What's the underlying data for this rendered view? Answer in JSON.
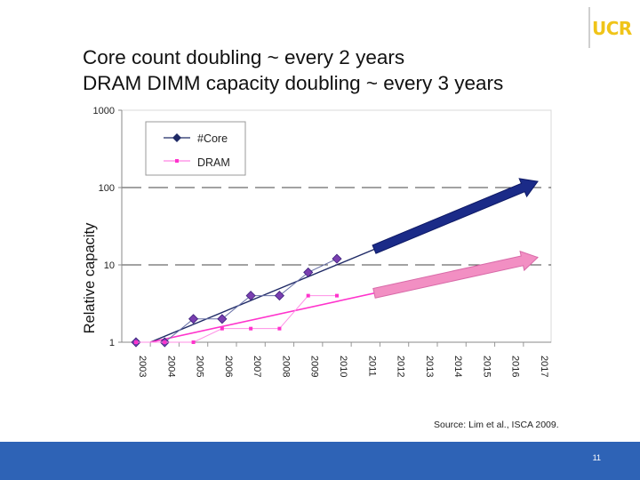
{
  "slide": {
    "title_line1": "Core count doubling ~ every 2 years",
    "title_line2": "DRAM DIMM capacity doubling ~ every 3 years",
    "logo": "UCR",
    "source": "Source: Lim et al., ISCA 2009.",
    "page_number": "11"
  },
  "colors": {
    "footer": "#2e63b6",
    "core": "#1f2a66",
    "dram": "#ff33cc",
    "core_arrow": "#1b2b88",
    "dram_arrow": "#f28fc3",
    "logo": "#f0c419"
  },
  "chart_data": {
    "type": "line",
    "scale": "log",
    "ylabel": "Relative capacity",
    "ylim": [
      1,
      1000
    ],
    "yticks": [
      "1",
      "10",
      "100",
      "1000"
    ],
    "categories": [
      "2003",
      "2004",
      "2005",
      "2006",
      "2007",
      "2008",
      "2009",
      "2010",
      "2011",
      "2012",
      "2013",
      "2014",
      "2015",
      "2016",
      "2017"
    ],
    "series": [
      {
        "name": "#Core",
        "marker": "diamond",
        "x": [
          "2003",
          "2004",
          "2005",
          "2006",
          "2007",
          "2008",
          "2009",
          "2010"
        ],
        "values": [
          1,
          1,
          2,
          2,
          4,
          4,
          8,
          12
        ]
      },
      {
        "name": "DRAM",
        "marker": "square",
        "x": [
          "2003",
          "2004",
          "2005",
          "2006",
          "2007",
          "2008",
          "2009",
          "2010"
        ],
        "values": [
          1,
          1,
          1,
          1.5,
          1.5,
          1.5,
          4,
          4
        ]
      }
    ],
    "trend_lines": [
      {
        "name": "#Core trend",
        "from": [
          "2003.5",
          1
        ],
        "to": [
          "2017",
          120
        ]
      },
      {
        "name": "DRAM trend",
        "from": [
          "2003.5",
          1
        ],
        "to": [
          "2017",
          12.5
        ]
      }
    ],
    "legend": "top-left",
    "gridlines_dashed_at": [
      10,
      100
    ]
  }
}
